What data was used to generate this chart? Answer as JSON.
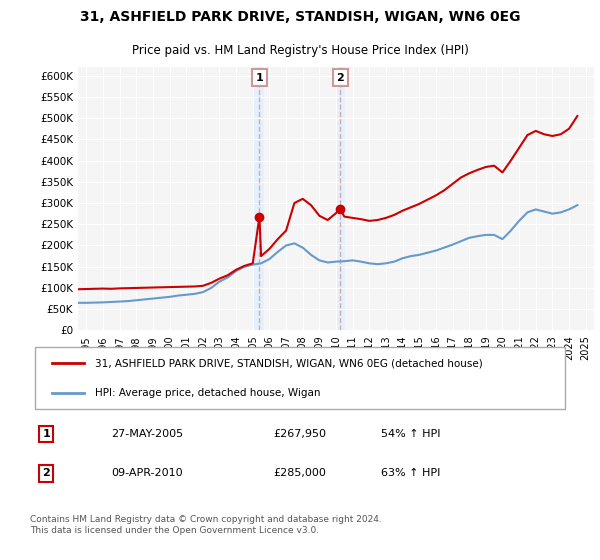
{
  "title": "31, ASHFIELD PARK DRIVE, STANDISH, WIGAN, WN6 0EG",
  "subtitle": "Price paid vs. HM Land Registry's House Price Index (HPI)",
  "legend_line1": "31, ASHFIELD PARK DRIVE, STANDISH, WIGAN, WN6 0EG (detached house)",
  "legend_line2": "HPI: Average price, detached house, Wigan",
  "transaction1_label": "1",
  "transaction1_date": "27-MAY-2005",
  "transaction1_price": "£267,950",
  "transaction1_hpi": "54% ↑ HPI",
  "transaction1_x": 2005.4,
  "transaction1_y": 267950,
  "transaction2_label": "2",
  "transaction2_date": "09-APR-2010",
  "transaction2_price": "£285,000",
  "transaction2_hpi": "63% ↑ HPI",
  "transaction2_x": 2010.27,
  "transaction2_y": 285000,
  "footer": "Contains HM Land Registry data © Crown copyright and database right 2024.\nThis data is licensed under the Open Government Licence v3.0.",
  "red_color": "#cc0000",
  "blue_color": "#6699cc",
  "vline_color": "#cc9999",
  "background_color": "#ffffff",
  "plot_bg_color": "#f5f5f5",
  "ylim": [
    0,
    620000
  ],
  "xlim_start": 1994.5,
  "xlim_end": 2025.5,
  "yticks": [
    0,
    50000,
    100000,
    150000,
    200000,
    250000,
    300000,
    350000,
    400000,
    450000,
    500000,
    550000,
    600000
  ],
  "ytick_labels": [
    "£0",
    "£50K",
    "£100K",
    "£150K",
    "£200K",
    "£250K",
    "£300K",
    "£350K",
    "£400K",
    "£450K",
    "£500K",
    "£550K",
    "£600K"
  ],
  "xticks": [
    1995,
    1996,
    1997,
    1998,
    1999,
    2000,
    2001,
    2002,
    2003,
    2004,
    2005,
    2006,
    2007,
    2008,
    2009,
    2010,
    2011,
    2012,
    2013,
    2014,
    2015,
    2016,
    2017,
    2018,
    2019,
    2020,
    2021,
    2022,
    2023,
    2024,
    2025
  ],
  "hpi_x": [
    1994.5,
    1995.0,
    1995.5,
    1996.0,
    1996.5,
    1997.0,
    1997.5,
    1998.0,
    1998.5,
    1999.0,
    1999.5,
    2000.0,
    2000.5,
    2001.0,
    2001.5,
    2002.0,
    2002.5,
    2003.0,
    2003.5,
    2004.0,
    2004.5,
    2005.0,
    2005.5,
    2006.0,
    2006.5,
    2007.0,
    2007.5,
    2008.0,
    2008.5,
    2009.0,
    2009.5,
    2010.0,
    2010.5,
    2011.0,
    2011.5,
    2012.0,
    2012.5,
    2013.0,
    2013.5,
    2014.0,
    2014.5,
    2015.0,
    2015.5,
    2016.0,
    2016.5,
    2017.0,
    2017.5,
    2018.0,
    2018.5,
    2019.0,
    2019.5,
    2020.0,
    2020.5,
    2021.0,
    2021.5,
    2022.0,
    2022.5,
    2023.0,
    2023.5,
    2024.0,
    2024.5
  ],
  "hpi_y": [
    65000,
    65000,
    65500,
    66000,
    67000,
    68000,
    69000,
    71000,
    73000,
    75000,
    77000,
    79000,
    82000,
    84000,
    86000,
    90000,
    100000,
    115000,
    125000,
    140000,
    150000,
    155000,
    158000,
    168000,
    185000,
    200000,
    205000,
    195000,
    178000,
    165000,
    160000,
    162000,
    163000,
    165000,
    162000,
    158000,
    156000,
    158000,
    162000,
    170000,
    175000,
    178000,
    183000,
    188000,
    195000,
    202000,
    210000,
    218000,
    222000,
    225000,
    225000,
    215000,
    235000,
    258000,
    278000,
    285000,
    280000,
    275000,
    278000,
    285000,
    295000
  ],
  "red_x": [
    1994.5,
    1995.0,
    1995.5,
    1996.0,
    1996.5,
    1997.0,
    1997.5,
    1998.0,
    1998.5,
    1999.0,
    1999.5,
    2000.0,
    2000.5,
    2001.0,
    2001.5,
    2002.0,
    2002.5,
    2003.0,
    2003.5,
    2004.0,
    2004.5,
    2005.0,
    2005.4,
    2005.5,
    2006.0,
    2006.5,
    2007.0,
    2007.5,
    2008.0,
    2008.5,
    2009.0,
    2009.5,
    2010.27,
    2010.5,
    2011.0,
    2011.5,
    2012.0,
    2012.5,
    2013.0,
    2013.5,
    2014.0,
    2014.5,
    2015.0,
    2015.5,
    2016.0,
    2016.5,
    2017.0,
    2017.5,
    2018.0,
    2018.5,
    2019.0,
    2019.5,
    2020.0,
    2020.5,
    2021.0,
    2021.5,
    2022.0,
    2022.5,
    2023.0,
    2023.5,
    2024.0,
    2024.5
  ],
  "red_y": [
    97000,
    97500,
    98000,
    98500,
    98000,
    99000,
    99500,
    100000,
    100500,
    101000,
    101500,
    102000,
    102500,
    103000,
    103500,
    105000,
    112000,
    122000,
    130000,
    143000,
    152000,
    158000,
    267950,
    175000,
    192000,
    215000,
    235000,
    300000,
    310000,
    295000,
    270000,
    260000,
    285000,
    268000,
    265000,
    262000,
    258000,
    260000,
    265000,
    272000,
    282000,
    290000,
    298000,
    308000,
    318000,
    330000,
    345000,
    360000,
    370000,
    378000,
    385000,
    388000,
    372000,
    400000,
    430000,
    460000,
    470000,
    462000,
    458000,
    462000,
    475000,
    505000
  ]
}
